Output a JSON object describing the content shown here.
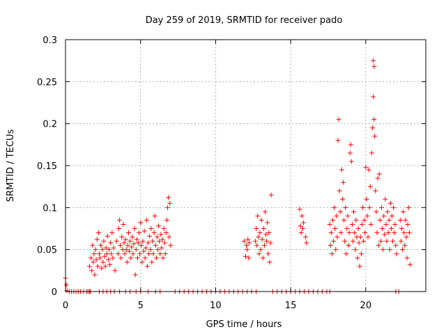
{
  "chart_data": {
    "type": "scatter",
    "title": "Day 259 of 2019, SRMTID for receiver pado",
    "xlabel": "GPS time / hours",
    "ylabel": "SRMTID / TECUs",
    "xlim": [
      0,
      24
    ],
    "ylim": [
      0,
      0.3
    ],
    "xticks": [
      0,
      5,
      10,
      15,
      20
    ],
    "yticks": [
      0,
      0.05,
      0.1,
      0.15,
      0.2,
      0.25,
      0.3
    ],
    "xtick_labels": [
      "0",
      "5",
      "10",
      "15",
      "20"
    ],
    "ytick_labels": [
      "0",
      "0.05",
      "0.1",
      "0.15",
      "0.2",
      "0.25",
      "0.3"
    ],
    "grid": true,
    "marker": "+",
    "color": "#ff0000",
    "series": [
      {
        "name": "SRMTID",
        "points": [
          [
            0.0,
            0.016
          ],
          [
            0.05,
            0.008
          ],
          [
            0.1,
            0.001
          ],
          [
            0.25,
            0
          ],
          [
            0.4,
            0
          ],
          [
            0.55,
            0
          ],
          [
            0.7,
            0
          ],
          [
            0.85,
            0
          ],
          [
            1.0,
            0
          ],
          [
            1.2,
            0
          ],
          [
            1.4,
            0
          ],
          [
            1.6,
            0
          ],
          [
            1.6,
            0.03
          ],
          [
            1.7,
            0.04
          ],
          [
            1.75,
            0.025
          ],
          [
            1.8,
            0.055
          ],
          [
            1.85,
            0.035
          ],
          [
            1.9,
            0.045
          ],
          [
            1.95,
            0.02
          ],
          [
            2.0,
            0.05
          ],
          [
            2.05,
            0.038
          ],
          [
            2.1,
            0.062
          ],
          [
            2.15,
            0.03
          ],
          [
            2.2,
            0.07
          ],
          [
            2.25,
            0.045
          ],
          [
            2.3,
            0.04
          ],
          [
            2.35,
            0.055
          ],
          [
            2.4,
            0.028
          ],
          [
            2.45,
            0.05
          ],
          [
            2.5,
            0.035
          ],
          [
            2.55,
            0.06
          ],
          [
            2.6,
            0.042
          ],
          [
            2.65,
            0.03
          ],
          [
            2.7,
            0.052
          ],
          [
            2.75,
            0.045
          ],
          [
            2.8,
            0.066
          ],
          [
            2.85,
            0.038
          ],
          [
            2.9,
            0.05
          ],
          [
            2.95,
            0.032
          ],
          [
            3.0,
            0.058
          ],
          [
            3.05,
            0.045
          ],
          [
            3.1,
            0.07
          ],
          [
            3.15,
            0.04
          ],
          [
            3.2,
            0.052
          ],
          [
            3.3,
            0.025
          ],
          [
            3.4,
            0.06
          ],
          [
            3.5,
            0.045
          ],
          [
            3.55,
            0.075
          ],
          [
            3.6,
            0.085
          ],
          [
            3.65,
            0.055
          ],
          [
            3.7,
            0.04
          ],
          [
            3.75,
            0.065
          ],
          [
            3.8,
            0.05
          ],
          [
            3.85,
            0.08
          ],
          [
            3.9,
            0.058
          ],
          [
            3.95,
            0.045
          ],
          [
            4.0,
            0.062
          ],
          [
            4.05,
            0.05
          ],
          [
            4.1,
            0.035
          ],
          [
            4.15,
            0.055
          ],
          [
            4.2,
            0.07
          ],
          [
            4.25,
            0.048
          ],
          [
            4.3,
            0.06
          ],
          [
            4.35,
            0.04
          ],
          [
            4.4,
            0.053
          ],
          [
            4.45,
            0.065
          ],
          [
            4.5,
            0.045
          ],
          [
            4.55,
            0.057
          ],
          [
            4.6,
            0.075
          ],
          [
            4.65,
            0.02
          ],
          [
            4.7,
            0.05
          ],
          [
            4.75,
            0.062
          ],
          [
            4.8,
            0.04
          ],
          [
            4.85,
            0.058
          ],
          [
            4.9,
            0.07
          ],
          [
            4.95,
            0.045
          ],
          [
            5.0,
            0.082
          ],
          [
            5.05,
            0.055
          ],
          [
            5.1,
            0.035
          ],
          [
            5.15,
            0.06
          ],
          [
            5.2,
            0.048
          ],
          [
            5.25,
            0.072
          ],
          [
            5.3,
            0.04
          ],
          [
            5.35,
            0.052
          ],
          [
            5.4,
            0.085
          ],
          [
            5.45,
            0.03
          ],
          [
            5.5,
            0.058
          ],
          [
            5.55,
            0.045
          ],
          [
            5.6,
            0.066
          ],
          [
            5.65,
            0.05
          ],
          [
            5.7,
            0.075
          ],
          [
            5.75,
            0.035
          ],
          [
            5.8,
            0.06
          ],
          [
            5.85,
            0.045
          ],
          [
            5.9,
            0.07
          ],
          [
            5.95,
            0.09
          ],
          [
            6.0,
            0.055
          ],
          [
            6.05,
            0.04
          ],
          [
            6.1,
            0.065
          ],
          [
            6.15,
            0.05
          ],
          [
            6.2,
            0.078
          ],
          [
            6.25,
            0.06
          ],
          [
            6.3,
            0.045
          ],
          [
            6.35,
            0.068
          ],
          [
            6.4,
            0.052
          ],
          [
            6.45,
            0.062
          ],
          [
            6.5,
            0.04
          ],
          [
            6.55,
            0.075
          ],
          [
            6.6,
            0.058
          ],
          [
            6.65,
            0.045
          ],
          [
            6.7,
            0.07
          ],
          [
            6.75,
            0.085
          ],
          [
            6.8,
            0.1
          ],
          [
            6.85,
            0.112
          ],
          [
            6.9,
            0.065
          ],
          [
            6.95,
            0.105
          ],
          [
            7.0,
            0.055
          ],
          [
            1.5,
            0
          ],
          [
            1.65,
            0
          ],
          [
            2.25,
            0
          ],
          [
            2.5,
            0
          ],
          [
            2.75,
            0
          ],
          [
            3.0,
            0
          ],
          [
            3.25,
            0
          ],
          [
            3.6,
            0
          ],
          [
            4.0,
            0
          ],
          [
            4.3,
            0
          ],
          [
            4.7,
            0
          ],
          [
            5.0,
            0
          ],
          [
            5.5,
            0
          ],
          [
            6.0,
            0
          ],
          [
            6.3,
            0
          ],
          [
            7.3,
            0
          ],
          [
            7.6,
            0
          ],
          [
            7.9,
            0
          ],
          [
            8.2,
            0
          ],
          [
            8.5,
            0
          ],
          [
            8.8,
            0
          ],
          [
            9.1,
            0
          ],
          [
            9.4,
            0
          ],
          [
            9.7,
            0
          ],
          [
            10.0,
            0
          ],
          [
            10.3,
            0
          ],
          [
            10.6,
            0
          ],
          [
            10.9,
            0
          ],
          [
            11.2,
            0
          ],
          [
            11.5,
            0
          ],
          [
            11.8,
            0
          ],
          [
            12.1,
            0
          ],
          [
            12.4,
            0
          ],
          [
            12.7,
            0
          ],
          [
            13.8,
            0
          ],
          [
            14.1,
            0
          ],
          [
            14.4,
            0
          ],
          [
            14.7,
            0
          ],
          [
            15.0,
            0
          ],
          [
            15.3,
            0
          ],
          [
            15.6,
            0
          ],
          [
            15.9,
            0
          ],
          [
            16.2,
            0
          ],
          [
            16.5,
            0
          ],
          [
            16.8,
            0
          ],
          [
            17.1,
            0
          ],
          [
            17.4,
            0
          ],
          [
            17.6,
            0
          ],
          [
            22.0,
            0
          ],
          [
            22.2,
            0
          ],
          [
            11.9,
            0.06
          ],
          [
            12.0,
            0.042
          ],
          [
            12.05,
            0.055
          ],
          [
            12.1,
            0.05
          ],
          [
            12.15,
            0.062
          ],
          [
            12.2,
            0.04
          ],
          [
            12.25,
            0.058
          ],
          [
            12.65,
            0.06
          ],
          [
            12.7,
            0.075
          ],
          [
            12.75,
            0.055
          ],
          [
            12.8,
            0.09
          ],
          [
            12.85,
            0.065
          ],
          [
            12.9,
            0.045
          ],
          [
            12.95,
            0.07
          ],
          [
            13.0,
            0.05
          ],
          [
            13.05,
            0.085
          ],
          [
            13.1,
            0.062
          ],
          [
            13.15,
            0.04
          ],
          [
            13.2,
            0.075
          ],
          [
            13.25,
            0.055
          ],
          [
            13.3,
            0.095
          ],
          [
            13.35,
            0.068
          ],
          [
            13.4,
            0.06
          ],
          [
            13.45,
            0.082
          ],
          [
            13.5,
            0.045
          ],
          [
            13.55,
            0.07
          ],
          [
            13.6,
            0.035
          ],
          [
            13.65,
            0.058
          ],
          [
            13.7,
            0.115
          ],
          [
            15.6,
            0.098
          ],
          [
            15.65,
            0.078
          ],
          [
            15.7,
            0.07
          ],
          [
            15.75,
            0.09
          ],
          [
            15.8,
            0.075
          ],
          [
            15.85,
            0.082
          ],
          [
            16.0,
            0.065
          ],
          [
            16.05,
            0.058
          ],
          [
            17.6,
            0.08
          ],
          [
            17.65,
            0.055
          ],
          [
            17.7,
            0.07
          ],
          [
            17.75,
            0.045
          ],
          [
            17.8,
            0.085
          ],
          [
            17.85,
            0.06
          ],
          [
            17.9,
            0.1
          ],
          [
            17.95,
            0.075
          ],
          [
            18.0,
            0.05
          ],
          [
            18.05,
            0.09
          ],
          [
            18.1,
            0.065
          ],
          [
            18.15,
            0.18
          ],
          [
            18.2,
            0.205
          ],
          [
            18.25,
            0.12
          ],
          [
            18.3,
            0.095
          ],
          [
            18.35,
            0.07
          ],
          [
            18.4,
            0.145
          ],
          [
            18.45,
            0.11
          ],
          [
            18.5,
            0.13
          ],
          [
            18.55,
            0.085
          ],
          [
            18.6,
            0.06
          ],
          [
            18.65,
            0.1
          ],
          [
            18.7,
            0.045
          ],
          [
            18.75,
            0.075
          ],
          [
            18.8,
            0.09
          ],
          [
            18.85,
            0.055
          ],
          [
            18.9,
            0.07
          ],
          [
            18.95,
            0.165
          ],
          [
            19.0,
            0.175
          ],
          [
            19.05,
            0.155
          ],
          [
            19.1,
            0.08
          ],
          [
            19.15,
            0.06
          ],
          [
            19.2,
            0.095
          ],
          [
            19.25,
            0.07
          ],
          [
            19.3,
            0.05
          ],
          [
            19.35,
            0.085
          ],
          [
            19.4,
            0.065
          ],
          [
            19.45,
            0.04
          ],
          [
            19.5,
            0.075
          ],
          [
            19.55,
            0.058
          ],
          [
            19.6,
            0.03
          ],
          [
            19.65,
            0.065
          ],
          [
            19.7,
            0.045
          ],
          [
            19.75,
            0.08
          ],
          [
            19.8,
            0.1
          ],
          [
            19.85,
            0.06
          ],
          [
            19.9,
            0.085
          ],
          [
            19.95,
            0.07
          ],
          [
            20.0,
            0.148
          ],
          [
            20.05,
            0.11
          ],
          [
            20.1,
            0.09
          ],
          [
            20.15,
            0.065
          ],
          [
            20.2,
            0.145
          ],
          [
            20.25,
            0.1
          ],
          [
            20.3,
            0.125
          ],
          [
            20.35,
            0.08
          ],
          [
            20.4,
            0.165
          ],
          [
            20.45,
            0.195
          ],
          [
            20.5,
            0.232
          ],
          [
            20.55,
            0.205
          ],
          [
            20.6,
            0.185
          ],
          [
            20.65,
            0.12
          ],
          [
            20.7,
            0.095
          ],
          [
            20.75,
            0.07
          ],
          [
            20.8,
            0.135
          ],
          [
            20.85,
            0.055
          ],
          [
            20.9,
            0.14
          ],
          [
            20.95,
            0.085
          ],
          [
            21.0,
            0.06
          ],
          [
            21.05,
            0.1
          ],
          [
            21.1,
            0.075
          ],
          [
            21.15,
            0.05
          ],
          [
            21.2,
            0.09
          ],
          [
            21.25,
            0.068
          ],
          [
            21.3,
            0.11
          ],
          [
            21.35,
            0.08
          ],
          [
            21.4,
            0.06
          ],
          [
            21.45,
            0.095
          ],
          [
            21.5,
            0.07
          ],
          [
            21.55,
            0.085
          ],
          [
            21.6,
            0.05
          ],
          [
            21.65,
            0.105
          ],
          [
            21.7,
            0.075
          ],
          [
            21.75,
            0.09
          ],
          [
            21.8,
            0.06
          ],
          [
            21.85,
            0.1
          ],
          [
            21.9,
            0.07
          ],
          [
            21.95,
            0.08
          ],
          [
            22.0,
            0.055
          ],
          [
            22.05,
            0.045
          ],
          [
            20.5,
            0.275
          ],
          [
            20.55,
            0.268
          ],
          [
            22.3,
            0.085
          ],
          [
            22.35,
            0.06
          ],
          [
            22.4,
            0.075
          ],
          [
            22.45,
            0.05
          ],
          [
            22.5,
            0.095
          ],
          [
            22.55,
            0.07
          ],
          [
            22.6,
            0.055
          ],
          [
            22.65,
            0.085
          ],
          [
            22.7,
            0.065
          ],
          [
            22.75,
            0.04
          ],
          [
            22.8,
            0.08
          ],
          [
            22.85,
            0.1
          ],
          [
            22.9,
            0.07
          ],
          [
            22.95,
            0.032
          ]
        ]
      }
    ]
  }
}
